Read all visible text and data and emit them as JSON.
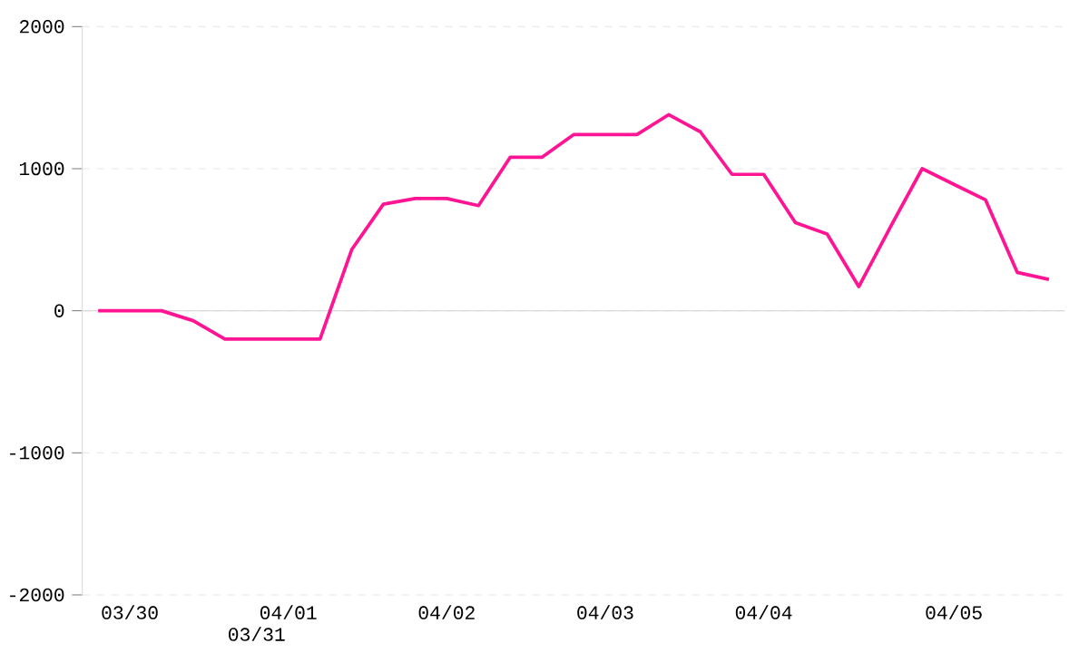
{
  "chart_data": {
    "type": "line",
    "categories": [
      null,
      "03/30",
      null,
      null,
      null,
      "03/31",
      "04/01",
      null,
      null,
      null,
      null,
      "04/02",
      null,
      null,
      null,
      null,
      "04/03",
      null,
      null,
      null,
      null,
      "04/04",
      null,
      null,
      null,
      null,
      null,
      "04/05",
      null,
      null,
      null
    ],
    "values": [
      0,
      0,
      0,
      -70,
      -200,
      -200,
      -200,
      -200,
      430,
      750,
      790,
      790,
      740,
      1080,
      1080,
      1240,
      1240,
      1240,
      1380,
      1260,
      960,
      960,
      620,
      540,
      170,
      590,
      1000,
      890,
      780,
      270,
      220
    ],
    "color": "#ff1493",
    "ylim": [
      -2000,
      2000
    ],
    "yticks": [
      -2000,
      -1000,
      0,
      1000,
      2000
    ],
    "grid": "y",
    "marker": "none",
    "line_style": "solid"
  }
}
